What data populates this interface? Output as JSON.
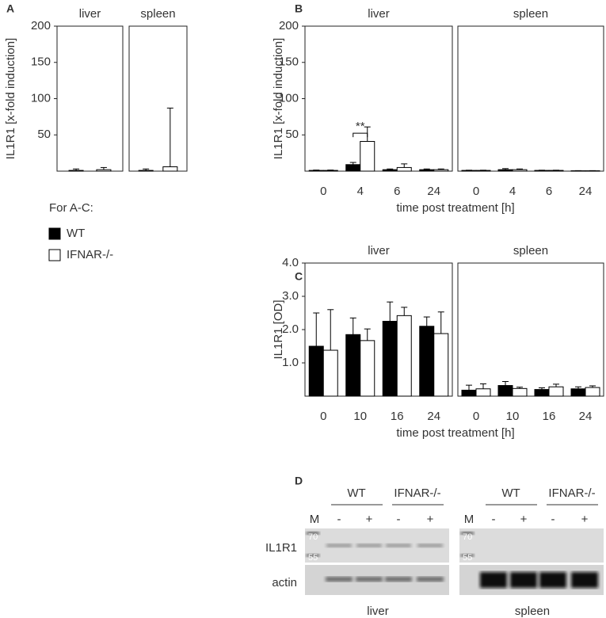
{
  "chart_data": [
    {
      "type": "bar",
      "panel_label": "A",
      "title": "liver",
      "ylabel": "IL1R1 [x-fold induction]",
      "categories": [
        null
      ],
      "series": [
        {
          "name": "WT",
          "color": "#000000",
          "values": [
            1
          ],
          "errors": [
            2
          ]
        },
        {
          "name": "IFNAR-/-",
          "color": "#ffffff",
          "values": [
            2
          ],
          "errors": [
            3
          ]
        }
      ],
      "ylim": [
        0,
        200
      ],
      "yticks": [
        50,
        100,
        150,
        200
      ]
    },
    {
      "type": "bar",
      "title": "spleen",
      "categories": [
        null
      ],
      "series": [
        {
          "color": "#000000",
          "values": [
            1
          ],
          "errors": [
            2
          ]
        },
        {
          "color": "#ffffff",
          "values": [
            6
          ],
          "errors": [
            81
          ]
        }
      ],
      "ylim": [
        0,
        200
      ]
    },
    {
      "type": "bar",
      "panel_label": "B",
      "title": "liver",
      "ylabel": "IL1R1 [x-fold induction]",
      "xlabel": "time post treatment [h]",
      "categories": [
        "0",
        "4",
        "6",
        "24"
      ],
      "annotation": "**",
      "series": [
        {
          "color": "#000000",
          "values": [
            1,
            9,
            2,
            2
          ],
          "errors": [
            0.5,
            3,
            1,
            1
          ]
        },
        {
          "color": "#ffffff",
          "values": [
            1,
            41,
            5,
            2
          ],
          "errors": [
            0.5,
            20,
            5,
            1
          ]
        }
      ],
      "ylim": [
        0,
        200
      ],
      "yticks": [
        50,
        100,
        150,
        200
      ]
    },
    {
      "type": "bar",
      "title": "spleen",
      "categories": [
        "0",
        "4",
        "6",
        "24"
      ],
      "series": [
        {
          "color": "#000000",
          "values": [
            1,
            2,
            1,
            0.5
          ],
          "errors": [
            0.3,
            1.5,
            0.3,
            0.2
          ]
        },
        {
          "color": "#ffffff",
          "values": [
            1,
            2,
            1,
            0.5
          ],
          "errors": [
            0.3,
            1,
            0.3,
            0.2
          ]
        }
      ],
      "ylim": [
        0,
        200
      ]
    },
    {
      "type": "bar",
      "panel_label": "C",
      "title": "liver",
      "ylabel": "IL1R1 [OD]",
      "xlabel": "time post treatment [h]",
      "categories": [
        "0",
        "10",
        "16",
        "24"
      ],
      "series": [
        {
          "color": "#000000",
          "values": [
            1.5,
            1.85,
            2.25,
            2.1
          ],
          "errors": [
            1.0,
            0.5,
            0.58,
            0.28
          ]
        },
        {
          "color": "#ffffff",
          "values": [
            1.38,
            1.67,
            2.42,
            1.88
          ],
          "errors": [
            1.22,
            0.35,
            0.25,
            0.65
          ]
        }
      ],
      "ylim": [
        0,
        4
      ],
      "yticks": [
        {
          "value": 1,
          "label": "1.0"
        },
        {
          "value": 2,
          "label": "2.0"
        },
        {
          "value": 3,
          "label": "3.0"
        },
        {
          "value": 4,
          "label": "4.0"
        }
      ]
    },
    {
      "type": "bar",
      "title": "spleen",
      "categories": [
        "0",
        "10",
        "16",
        "24"
      ],
      "series": [
        {
          "color": "#000000",
          "values": [
            0.18,
            0.32,
            0.2,
            0.22
          ],
          "errors": [
            0.15,
            0.12,
            0.05,
            0.06
          ]
        },
        {
          "color": "#ffffff",
          "values": [
            0.22,
            0.23,
            0.28,
            0.26
          ],
          "errors": [
            0.15,
            0.04,
            0.08,
            0.05
          ]
        }
      ],
      "ylim": [
        0,
        4
      ]
    }
  ],
  "legend": {
    "title": "For A-C:"
  },
  "western_blot": {
    "panel_label": "D",
    "rows": [
      "IL1R1",
      "actin"
    ],
    "blots": [
      {
        "tissue": "liver",
        "genotypes": [
          "WT",
          "IFNAR-/-"
        ],
        "marker": "M",
        "treatments": [
          "-",
          "+",
          "-",
          "+"
        ],
        "marker_sizes": [
          "70",
          "55"
        ]
      },
      {
        "tissue": "spleen",
        "genotypes": [
          "WT",
          "IFNAR-/-"
        ],
        "marker": "M",
        "treatments": [
          "-",
          "+",
          "-",
          "+"
        ],
        "marker_sizes": [
          "70",
          "55"
        ]
      }
    ]
  }
}
